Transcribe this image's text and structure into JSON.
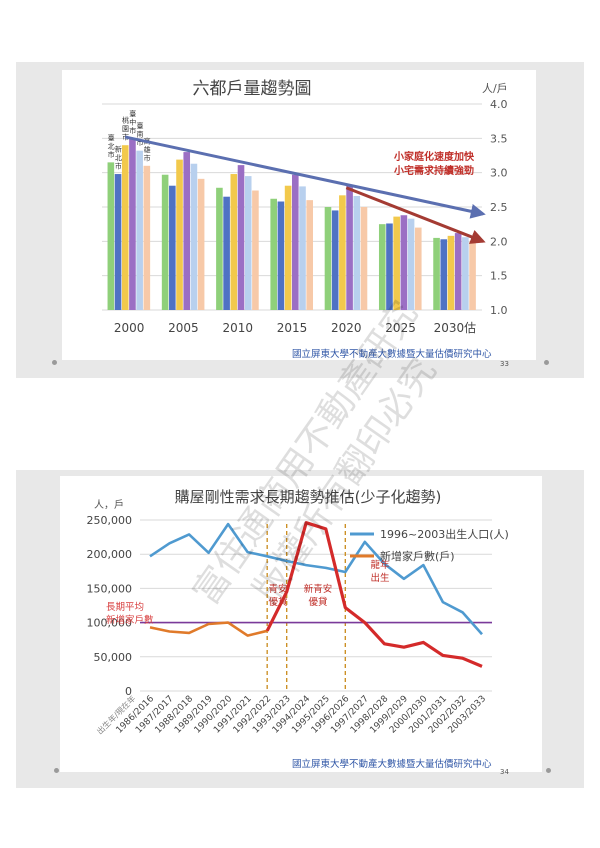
{
  "slides": [
    {
      "page_number": "33",
      "footer": "國立屏東大學不動產大數據暨大量估價研究中心"
    },
    {
      "page_number": "34",
      "footer": "國立屏東大學不動產大數據暨大量估價研究中心"
    }
  ],
  "watermark": {
    "line1": "富住通商用不動產研究",
    "line2": "版權所有翻印必究"
  },
  "chart_data": [
    {
      "type": "bar",
      "title": "六都戶量趨勢圖",
      "ylabel": "人/戶",
      "ylim": [
        1.0,
        4.0
      ],
      "yticks": [
        "1.0",
        "1.5",
        "2.0",
        "2.5",
        "3.0",
        "3.5",
        "4.0"
      ],
      "categories": [
        "2000",
        "2005",
        "2010",
        "2015",
        "2020",
        "2025",
        "2030估"
      ],
      "series": [
        {
          "name": "臺北市",
          "color": "#8fd07a",
          "values": [
            3.15,
            2.97,
            2.78,
            2.62,
            2.5,
            2.25,
            2.05
          ]
        },
        {
          "name": "新北市",
          "color": "#4f72c4",
          "values": [
            2.98,
            2.81,
            2.65,
            2.58,
            2.45,
            2.26,
            2.03
          ]
        },
        {
          "name": "桃園市",
          "color": "#f2c94c",
          "values": [
            3.4,
            3.19,
            2.98,
            2.81,
            2.67,
            2.36,
            2.08
          ]
        },
        {
          "name": "臺中市",
          "color": "#9b6fc4",
          "values": [
            3.5,
            3.3,
            3.11,
            2.97,
            2.82,
            2.38,
            2.12
          ]
        },
        {
          "name": "臺南市",
          "color": "#b8d0ee",
          "values": [
            3.32,
            3.13,
            2.95,
            2.8,
            2.66,
            2.33,
            2.06
          ]
        },
        {
          "name": "高雄市",
          "color": "#f7c9a8",
          "values": [
            3.1,
            2.91,
            2.74,
            2.6,
            2.5,
            2.2,
            2.0
          ]
        }
      ],
      "trend_lines": [
        {
          "name": "trend-blue",
          "color": "#5b6fb0",
          "from": [
            "2000",
            3.52
          ],
          "to": [
            "2030估",
            2.4
          ]
        },
        {
          "name": "trend-red",
          "color": "#a43b33",
          "from": [
            "2020",
            2.78
          ],
          "to": [
            "2030估",
            2.0
          ]
        }
      ],
      "annotation": [
        "小家庭化速度加快",
        "小宅需求持續強勁"
      ]
    },
    {
      "type": "line",
      "title": "購屋剛性需求長期趨勢推估(少子化趨勢)",
      "ylabel": "人，戶",
      "ylim": [
        0,
        250000
      ],
      "yticks": [
        "0",
        "50,000",
        "100,000",
        "150,000",
        "200,000",
        "250,000"
      ],
      "x_corner_label": "出生年/現在年",
      "x": [
        "1986/2016",
        "1987/2017",
        "1988/2018",
        "1989/2019",
        "1990/2020",
        "1991/2021",
        "1992/2022",
        "1993/2023",
        "1994/2024",
        "1995/2025",
        "1996/2026",
        "1997/2027",
        "1998/2028",
        "1999/2029",
        "2000/2030",
        "2001/2031",
        "2002/2032",
        "2003/2033"
      ],
      "series": [
        {
          "name": "1996~2003出生人口(人)",
          "color": "#4f9ad0",
          "values": [
            197000,
            216000,
            229000,
            202000,
            244000,
            203000,
            197000,
            190000,
            184000,
            180000,
            174000,
            218000,
            186000,
            164000,
            184000,
            130000,
            115000,
            83000
          ]
        },
        {
          "name": "新增家戶數(戶)",
          "color": "#e07a2a",
          "values": [
            93000,
            87000,
            85000,
            98000,
            100000,
            81000,
            88000,
            null,
            null,
            null,
            null,
            null,
            null,
            null,
            null,
            null,
            null,
            null
          ]
        },
        {
          "name": "projection",
          "color": "#d42a2a",
          "values": [
            null,
            null,
            null,
            null,
            null,
            null,
            88000,
            145000,
            246000,
            237000,
            122000,
            100000,
            69000,
            64000,
            71000,
            52000,
            48000,
            36000
          ]
        }
      ],
      "reference_line": {
        "value": 100000,
        "color": "#7a3a9a",
        "label": [
          "長期平均",
          "新增家戶數"
        ]
      },
      "dashed_markers": [
        "1992/2022",
        "1993/2023",
        "1996/2026"
      ],
      "annotations": [
        {
          "lines": [
            "青安",
            "優貸"
          ]
        },
        {
          "lines": [
            "新青安",
            "優貸"
          ]
        },
        {
          "lines": [
            "龍年",
            "出生"
          ]
        }
      ]
    }
  ]
}
